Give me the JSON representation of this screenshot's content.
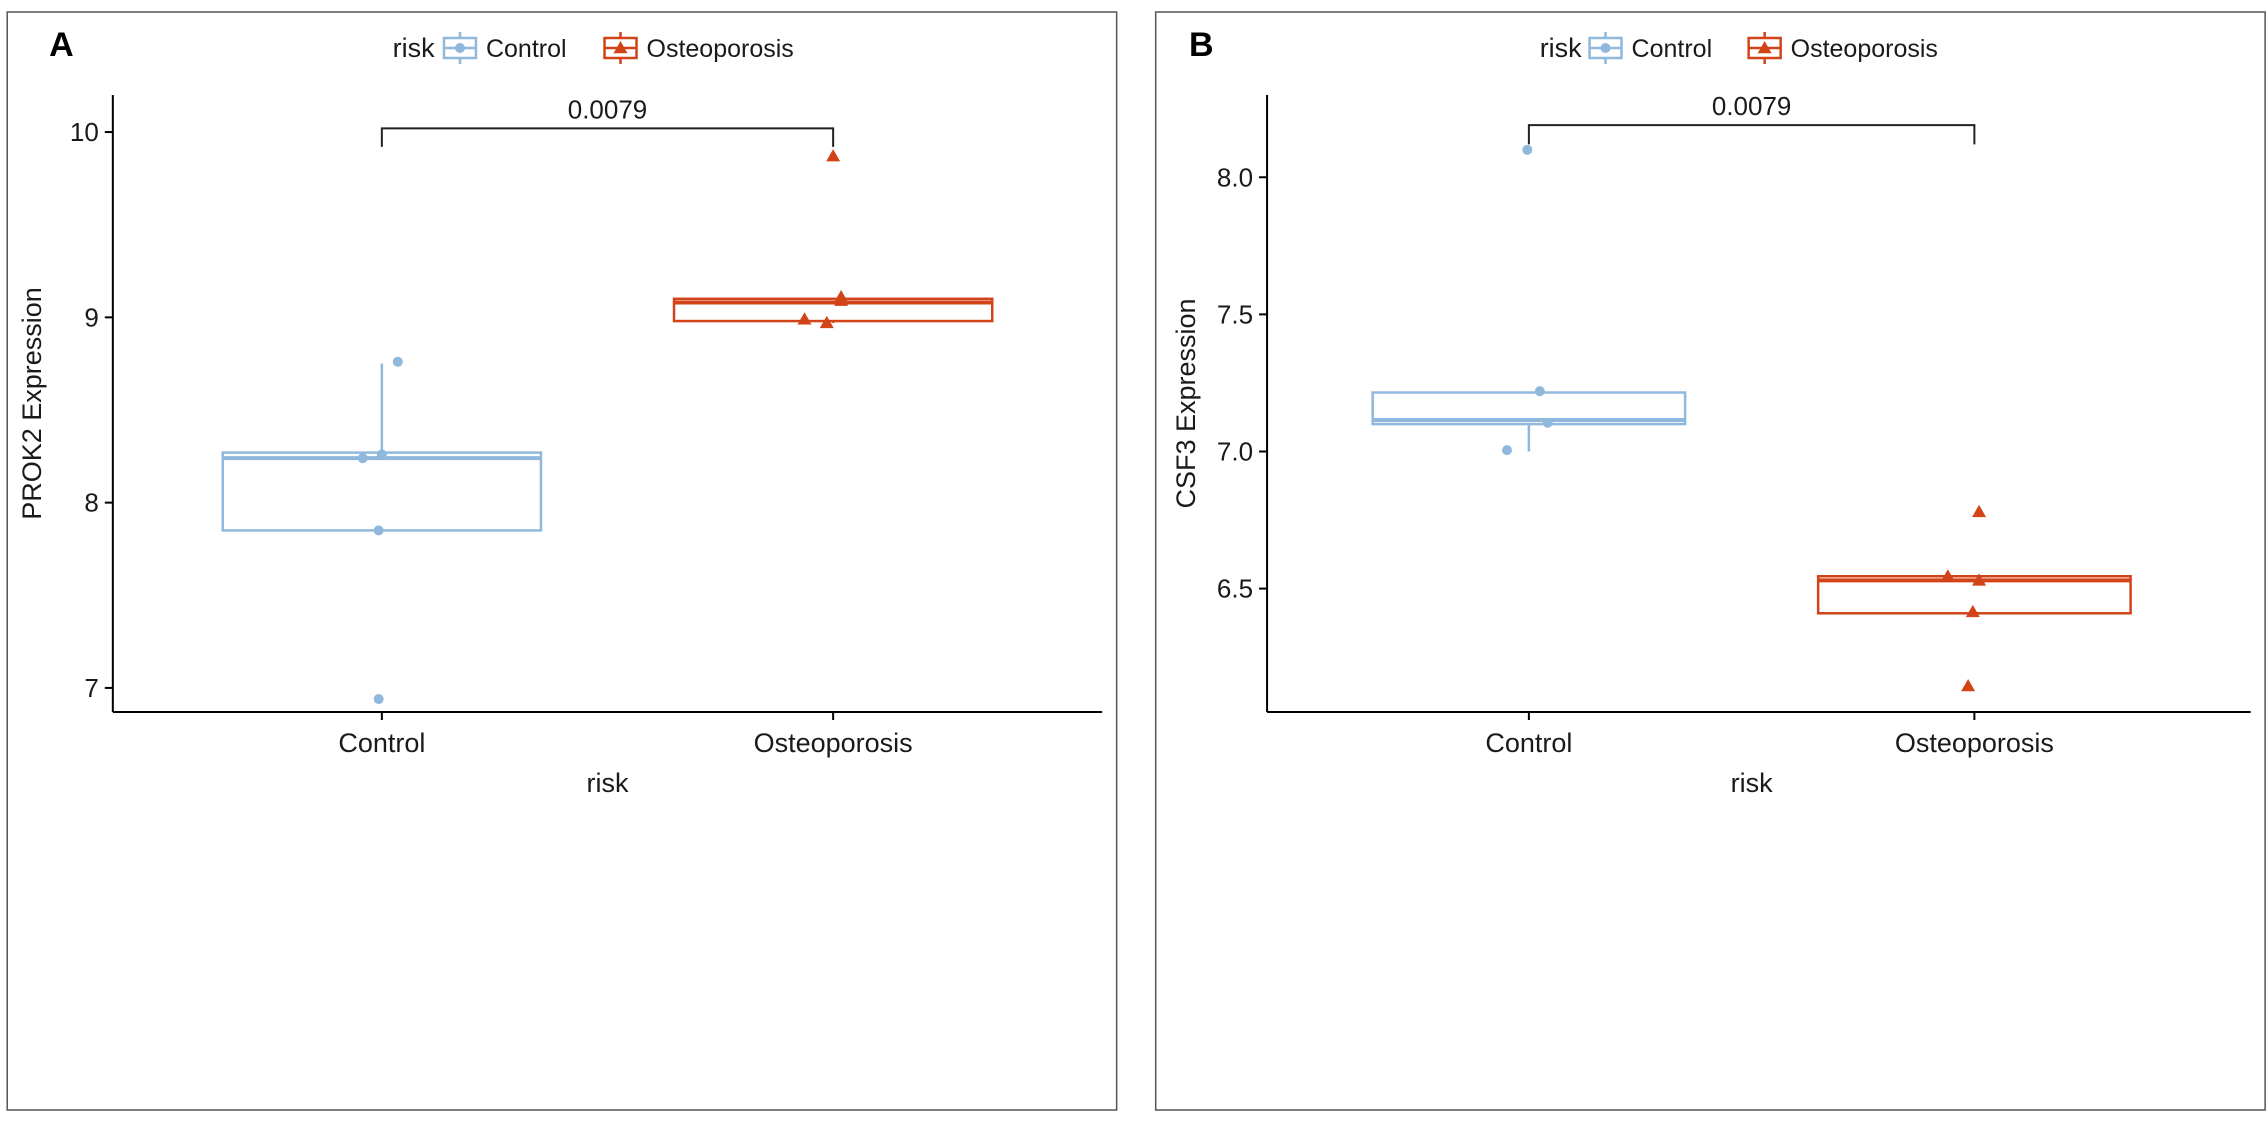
{
  "figure": {
    "panel_labels": [
      "A",
      "B"
    ]
  },
  "colors": {
    "control": "#8fb8dc",
    "osteoporosis": "#d24418",
    "axis": "#000000",
    "text": "#1a1a1a",
    "frame": "#555555"
  },
  "chart_data": [
    {
      "type": "box",
      "panel": "A",
      "title": "",
      "xlabel": "risk",
      "ylabel": "PROK2 Expression",
      "ylim": [
        6.87,
        10.2
      ],
      "yticks": [
        7,
        8,
        9,
        10
      ],
      "categories": [
        "Control",
        "Osteoporosis"
      ],
      "legend": {
        "title": "risk",
        "entries": [
          "Control",
          "Osteoporosis"
        ],
        "position": "top"
      },
      "comparison": {
        "label": "0.0079",
        "y": 10.02,
        "drop": 0.1
      },
      "series": [
        {
          "name": "Control",
          "marker": "circle",
          "box": {
            "q1": 7.85,
            "median": 8.24,
            "q3": 8.27,
            "whisker_low": 7.85,
            "whisker_high": 8.75
          },
          "points": [
            {
              "x": 0.1,
              "y": 8.76
            },
            {
              "x": -0.12,
              "y": 8.24
            },
            {
              "x": 0.0,
              "y": 8.26
            },
            {
              "x": -0.02,
              "y": 7.85
            },
            {
              "x": -0.02,
              "y": 6.94
            }
          ]
        },
        {
          "name": "Osteoporosis",
          "marker": "triangle",
          "box": {
            "q1": 8.98,
            "median": 9.08,
            "q3": 9.1,
            "whisker_low": 8.97,
            "whisker_high": 9.1
          },
          "points": [
            {
              "x": 0.0,
              "y": 9.87
            },
            {
              "x": 0.05,
              "y": 9.11
            },
            {
              "x": 0.05,
              "y": 9.09
            },
            {
              "x": -0.18,
              "y": 8.99
            },
            {
              "x": -0.04,
              "y": 8.97
            }
          ]
        }
      ]
    },
    {
      "type": "box",
      "panel": "B",
      "title": "",
      "xlabel": "risk",
      "ylabel": "CSF3 Expression",
      "ylim": [
        6.05,
        8.3
      ],
      "yticks": [
        6.5,
        7.0,
        7.5,
        8.0
      ],
      "categories": [
        "Control",
        "Osteoporosis"
      ],
      "legend": {
        "title": "risk",
        "entries": [
          "Control",
          "Osteoporosis"
        ],
        "position": "top"
      },
      "comparison": {
        "label": "0.0079",
        "y": 8.19,
        "drop": 0.07
      },
      "series": [
        {
          "name": "Control",
          "marker": "circle",
          "box": {
            "q1": 7.1,
            "median": 7.115,
            "q3": 7.215,
            "whisker_low": 7.0,
            "whisker_high": 7.215
          },
          "points": [
            {
              "x": -0.01,
              "y": 8.1
            },
            {
              "x": 0.07,
              "y": 7.22
            },
            {
              "x": 0.12,
              "y": 7.105
            },
            {
              "x": -0.14,
              "y": 7.005
            }
          ]
        },
        {
          "name": "Osteoporosis",
          "marker": "triangle",
          "box": {
            "q1": 6.41,
            "median": 6.53,
            "q3": 6.545,
            "whisker_low": 6.41,
            "whisker_high": 6.545
          },
          "points": [
            {
              "x": 0.03,
              "y": 6.78
            },
            {
              "x": -0.17,
              "y": 6.545
            },
            {
              "x": 0.03,
              "y": 6.53
            },
            {
              "x": -0.01,
              "y": 6.415
            },
            {
              "x": -0.04,
              "y": 6.145
            }
          ]
        }
      ]
    }
  ]
}
